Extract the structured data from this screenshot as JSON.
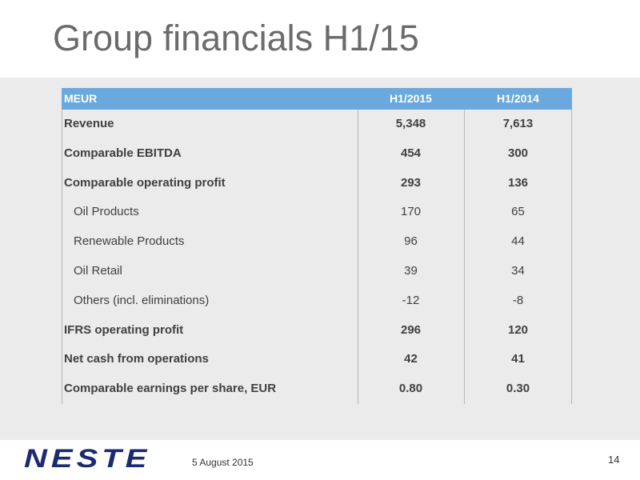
{
  "title": "Group financials H1/15",
  "table": {
    "header": [
      "MEUR",
      "H1/2015",
      "H1/2014"
    ],
    "rows": [
      [
        "Revenue",
        "5,348",
        "7,613"
      ],
      [
        "Comparable EBITDA",
        "454",
        "300"
      ],
      [
        "Comparable operating profit",
        "293",
        "136"
      ],
      [
        "Oil Products",
        "170",
        "65"
      ],
      [
        "Renewable Products",
        "96",
        "44"
      ],
      [
        "Oil Retail",
        "39",
        "34"
      ],
      [
        "Others (incl. eliminations)",
        "-12",
        "-8"
      ],
      [
        "IFRS operating profit",
        "296",
        "120"
      ],
      [
        "Net cash from operations",
        "42",
        "41"
      ],
      [
        "Comparable earnings per share, EUR",
        "0.80",
        "0.30"
      ]
    ]
  },
  "footer": {
    "logo": "NESTE",
    "date": "5 August 2015",
    "page": "14"
  }
}
